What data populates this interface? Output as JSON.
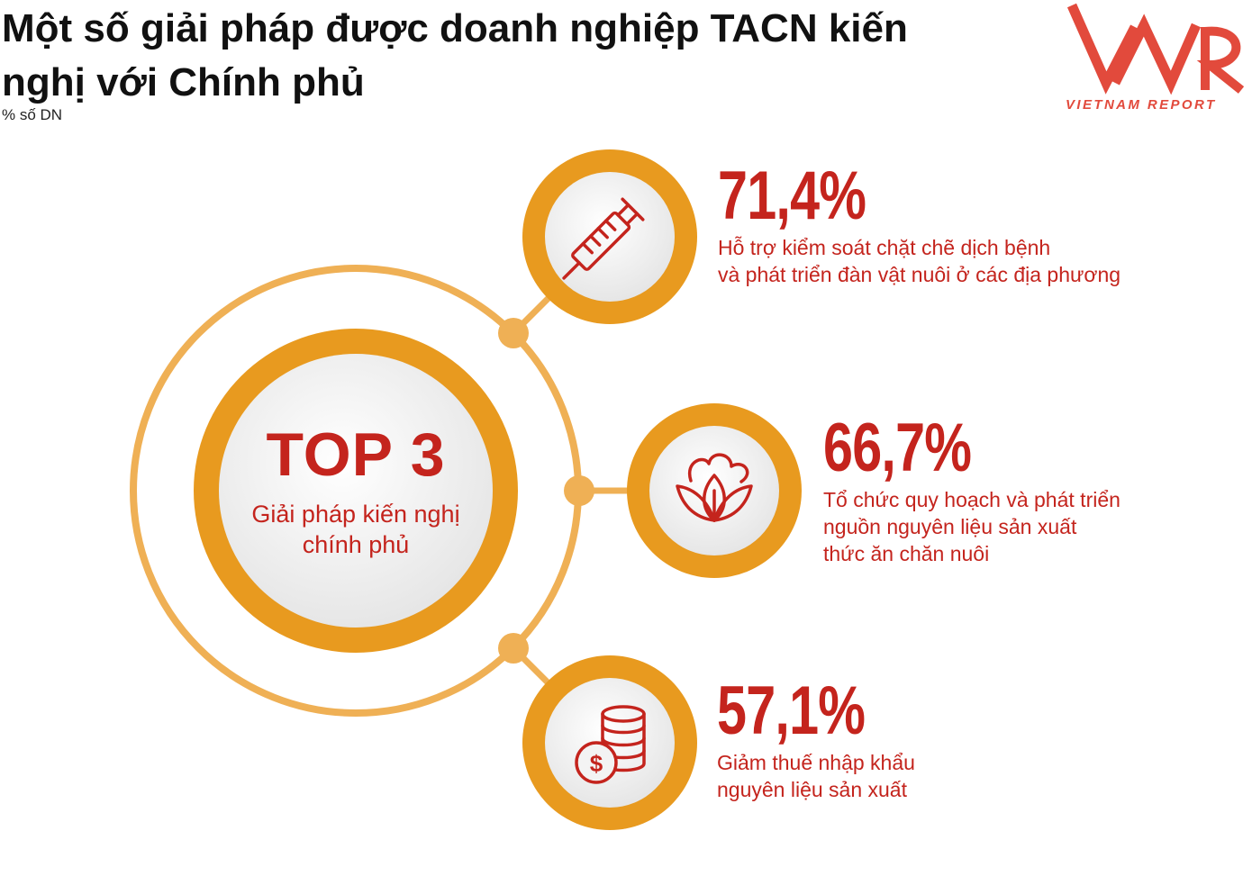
{
  "title": "Một số giải pháp được doanh nghiệp TACN kiến nghị với Chính phủ",
  "subtitle": "% số DN",
  "logo": {
    "mark": "VNR",
    "text": "VIETNAM REPORT"
  },
  "center": {
    "heading": "TOP 3",
    "caption": "Giải pháp kiến nghị chính phủ"
  },
  "items": [
    {
      "value": "71,4%",
      "description_lines": [
        "Hỗ trợ kiểm soát chặt chẽ dịch bệnh",
        "và phát triển đàn vật nuôi ở các địa phương"
      ],
      "icon": "syringe-icon"
    },
    {
      "value": "66,7%",
      "description_lines": [
        "Tổ chức quy hoạch và phát triển",
        "nguồn nguyên liệu sản xuất",
        "thức ăn chăn nuôi"
      ],
      "icon": "lotus-leaf-icon"
    },
    {
      "value": "57,1%",
      "description_lines": [
        "Giảm thuế nhập khẩu",
        "nguyên liệu sản xuất"
      ],
      "icon": "coins-dollar-icon"
    }
  ],
  "colors": {
    "orange": "#e89a1f",
    "light_orange": "#efb055",
    "red": "#c4241d",
    "logo_red": "#e24a3c"
  }
}
